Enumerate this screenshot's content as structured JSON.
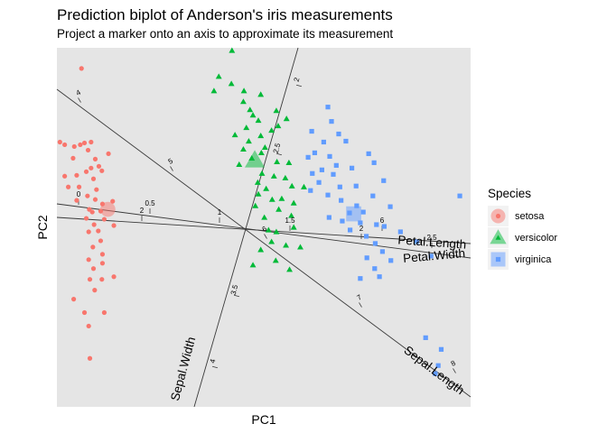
{
  "chart_data": {
    "type": "scatter",
    "title": "Prediction biplot of Anderson's iris measurements",
    "subtitle": "Project a marker onto an axis to approximate its measurement",
    "xlabel": "PC1",
    "ylabel": "PC2",
    "xlim": [
      -3.0,
      3.9
    ],
    "ylim": [
      -2.4,
      1.6
    ],
    "grid": false,
    "legend": {
      "title": "Species",
      "position": "right",
      "entries": [
        "setosa",
        "versicolor",
        "virginica"
      ]
    },
    "colors": {
      "setosa": "#F8766D",
      "versicolor": "#00BA38",
      "virginica": "#619CFF",
      "panel": "#E5E5E5",
      "axis": "#3a3a3a"
    },
    "series": [
      {
        "name": "setosa",
        "shape": "circle",
        "centroid": [
          -2.15,
          -0.2
        ],
        "points": [
          [
            -2.59,
            1.37
          ],
          [
            -2.95,
            0.55
          ],
          [
            -2.61,
            0.52
          ],
          [
            -2.87,
            0.52
          ],
          [
            -2.43,
            0.55
          ],
          [
            -2.54,
            0.54
          ],
          [
            -2.71,
            0.5
          ],
          [
            -2.48,
            0.46
          ],
          [
            -2.14,
            0.42
          ],
          [
            -2.36,
            0.36
          ],
          [
            -2.73,
            0.37
          ],
          [
            -2.3,
            0.28
          ],
          [
            -2.43,
            0.26
          ],
          [
            -2.67,
            0.18
          ],
          [
            -2.87,
            0.17
          ],
          [
            -2.25,
            0.23
          ],
          [
            -2.51,
            0.22
          ],
          [
            -2.39,
            0.14
          ],
          [
            -2.63,
            0.05
          ],
          [
            -2.81,
            0.05
          ],
          [
            -2.34,
            0.02
          ],
          [
            -2.49,
            -0.05
          ],
          [
            -2.36,
            -0.09
          ],
          [
            -2.67,
            -0.1
          ],
          [
            -2.24,
            -0.14
          ],
          [
            -2.07,
            -0.11
          ],
          [
            -2.46,
            -0.2
          ],
          [
            -2.27,
            -0.22
          ],
          [
            -2.41,
            -0.23
          ],
          [
            -2.51,
            -0.3
          ],
          [
            -2.21,
            -0.31
          ],
          [
            -2.38,
            -0.37
          ],
          [
            -2.05,
            -0.38
          ],
          [
            -2.31,
            -0.44
          ],
          [
            -2.47,
            -0.45
          ],
          [
            -2.27,
            -0.55
          ],
          [
            -2.4,
            -0.62
          ],
          [
            -2.24,
            -0.7
          ],
          [
            -2.47,
            -0.76
          ],
          [
            -2.24,
            -0.8
          ],
          [
            -2.39,
            -0.86
          ],
          [
            -2.45,
            -0.98
          ],
          [
            -2.25,
            -0.98
          ],
          [
            -2.05,
            -0.95
          ],
          [
            -2.37,
            -1.1
          ],
          [
            -2.72,
            -1.2
          ],
          [
            -2.54,
            -1.35
          ],
          [
            -2.21,
            -1.35
          ],
          [
            -2.47,
            -1.5
          ],
          [
            -2.45,
            -1.86
          ]
        ]
      },
      {
        "name": "versicolor",
        "shape": "triangle",
        "centroid": [
          0.3,
          0.35
        ],
        "points": [
          [
            -0.08,
            1.57
          ],
          [
            -0.3,
            1.28
          ],
          [
            -0.09,
            1.2
          ],
          [
            -0.38,
            1.12
          ],
          [
            0.12,
            1.12
          ],
          [
            0.11,
            1.0
          ],
          [
            0.4,
            1.08
          ],
          [
            0.22,
            0.91
          ],
          [
            0.27,
            0.85
          ],
          [
            0.36,
            0.79
          ],
          [
            0.66,
            0.9
          ],
          [
            0.83,
            0.81
          ],
          [
            0.69,
            0.73
          ],
          [
            0.16,
            0.71
          ],
          [
            0.58,
            0.68
          ],
          [
            0.4,
            0.62
          ],
          [
            -0.03,
            0.63
          ],
          [
            0.2,
            0.56
          ],
          [
            0.47,
            0.49
          ],
          [
            0.11,
            0.47
          ],
          [
            0.41,
            0.43
          ],
          [
            0.25,
            0.37
          ],
          [
            0.04,
            0.3
          ],
          [
            0.67,
            0.33
          ],
          [
            0.87,
            0.32
          ],
          [
            0.42,
            0.2
          ],
          [
            0.62,
            0.17
          ],
          [
            0.35,
            0.1
          ],
          [
            0.81,
            0.15
          ],
          [
            0.49,
            0.03
          ],
          [
            0.92,
            0.06
          ],
          [
            0.36,
            -0.03
          ],
          [
            0.59,
            -0.09
          ],
          [
            0.75,
            -0.08
          ],
          [
            0.31,
            -0.16
          ],
          [
            0.7,
            -0.2
          ],
          [
            0.46,
            -0.29
          ],
          [
            0.91,
            -0.27
          ],
          [
            0.53,
            -0.43
          ],
          [
            0.66,
            -0.45
          ],
          [
            0.95,
            -0.4
          ],
          [
            0.58,
            -0.56
          ],
          [
            0.82,
            -0.6
          ],
          [
            0.4,
            -0.65
          ],
          [
            1.06,
            -0.62
          ],
          [
            0.27,
            -0.82
          ],
          [
            0.65,
            -0.77
          ],
          [
            0.88,
            -0.87
          ],
          [
            0.95,
            -0.13
          ],
          [
            1.12,
            0.05
          ]
        ]
      },
      {
        "name": "virginica",
        "shape": "square",
        "centroid": [
          1.95,
          -0.25
        ],
        "points": [
          [
            1.52,
            0.94
          ],
          [
            1.58,
            0.78
          ],
          [
            1.25,
            0.67
          ],
          [
            1.7,
            0.64
          ],
          [
            1.45,
            0.55
          ],
          [
            1.82,
            0.56
          ],
          [
            1.3,
            0.43
          ],
          [
            1.55,
            0.39
          ],
          [
            2.2,
            0.42
          ],
          [
            1.19,
            0.38
          ],
          [
            1.66,
            0.29
          ],
          [
            1.42,
            0.24
          ],
          [
            1.92,
            0.26
          ],
          [
            2.29,
            0.32
          ],
          [
            1.26,
            0.2
          ],
          [
            1.61,
            0.19
          ],
          [
            2.45,
            0.12
          ],
          [
            1.37,
            0.1
          ],
          [
            1.72,
            0.05
          ],
          [
            1.99,
            0.06
          ],
          [
            1.23,
            0.01
          ],
          [
            1.52,
            -0.04
          ],
          [
            2.27,
            -0.05
          ],
          [
            1.74,
            -0.1
          ],
          [
            3.72,
            -0.05
          ],
          [
            2.0,
            -0.16
          ],
          [
            2.56,
            -0.17
          ],
          [
            1.88,
            -0.24
          ],
          [
            2.11,
            -0.23
          ],
          [
            1.54,
            -0.29
          ],
          [
            1.76,
            -0.33
          ],
          [
            2.06,
            -0.35
          ],
          [
            2.33,
            -0.37
          ],
          [
            1.89,
            -0.43
          ],
          [
            2.46,
            -0.39
          ],
          [
            2.16,
            -0.5
          ],
          [
            2.73,
            -0.45
          ],
          [
            2.31,
            -0.58
          ],
          [
            3.0,
            -0.56
          ],
          [
            2.43,
            -0.67
          ],
          [
            2.17,
            -0.74
          ],
          [
            2.57,
            -0.77
          ],
          [
            2.3,
            -0.86
          ],
          [
            3.24,
            -0.72
          ],
          [
            2.06,
            -0.97
          ],
          [
            2.38,
            -0.95
          ],
          [
            3.15,
            -1.63
          ],
          [
            3.41,
            -1.76
          ],
          [
            3.36,
            -1.94
          ],
          [
            3.31,
            -2.03
          ]
        ]
      }
    ],
    "axes": [
      {
        "name": "Sepal.Length",
        "ticks": [
          5,
          6,
          7,
          8
        ]
      },
      {
        "name": "Sepal.Width",
        "ticks": [
          2,
          2.5,
          3,
          3.5,
          4
        ]
      },
      {
        "name": "Petal.Length",
        "ticks": [
          2,
          3,
          4,
          5,
          6,
          7
        ]
      },
      {
        "name": "Petal.Width",
        "ticks": [
          0,
          0.5,
          1,
          1.5,
          2,
          2.5
        ]
      }
    ],
    "axis_tick_labels": [
      "4",
      "5",
      "6",
      "7",
      "8",
      "2",
      "2.5",
      "3.5",
      "4",
      "0",
      "0.5",
      "1",
      "1.5",
      "2",
      "2.5",
      "2",
      "6"
    ]
  }
}
